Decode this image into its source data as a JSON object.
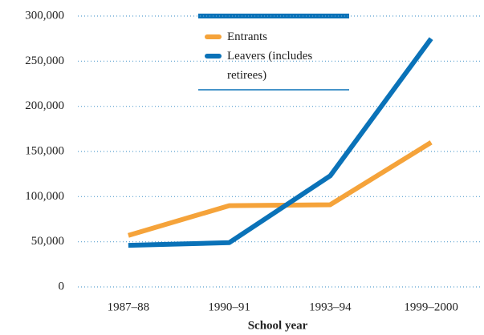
{
  "chart_data": {
    "type": "line",
    "x_label": "School year",
    "categories": [
      "1987–88",
      "1990–91",
      "1993–94",
      "1999–2000"
    ],
    "series": [
      {
        "name": "Entrants",
        "color": "#f5a33a",
        "values": [
          57000,
          90000,
          91000,
          160000
        ]
      },
      {
        "name": "Leavers (includes retirees)",
        "color": "#0a72b8",
        "values": [
          46000,
          49000,
          123000,
          275000
        ]
      }
    ],
    "ylim": [
      0,
      300000
    ],
    "yticks": [
      0,
      {
        "value": 50000,
        "label": "50,000"
      },
      {
        "value": 100000,
        "label": "100,000"
      },
      {
        "value": 150000,
        "label": "150,000"
      },
      {
        "value": 200000,
        "label": "200,000"
      },
      {
        "value": 250000,
        "label": "250,000"
      },
      {
        "value": 300000,
        "label": "300,000"
      }
    ],
    "grid": true,
    "legend": "top"
  }
}
